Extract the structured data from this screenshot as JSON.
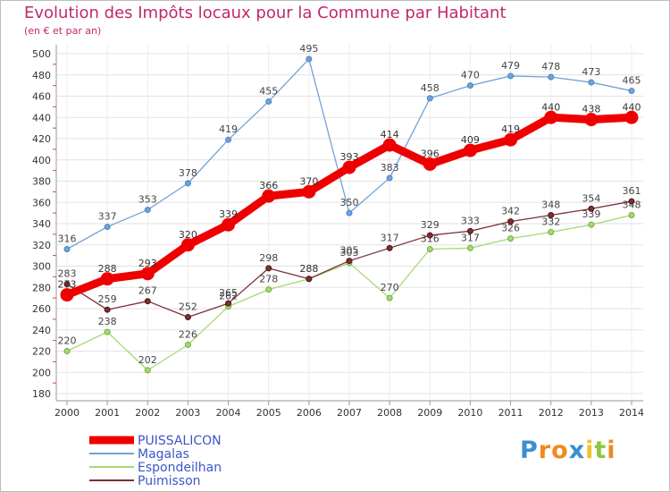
{
  "chart_data": {
    "type": "line",
    "title": "Evolution des Impôts locaux pour la Commune par Habitant",
    "subtitle": "(en € et par an)",
    "xlabel": "",
    "ylabel": "",
    "ylim": [
      180,
      500
    ],
    "ytick_step": 20,
    "categories": [
      "2000",
      "2001",
      "2002",
      "2003",
      "2004",
      "2005",
      "2006",
      "2007",
      "2008",
      "2009",
      "2010",
      "2011",
      "2012",
      "2013",
      "2014"
    ],
    "series": [
      {
        "name": "Magalas",
        "color": "#6fa3d8",
        "label_color": "#444444",
        "values": [
          316,
          337,
          353,
          378,
          419,
          455,
          495,
          350,
          383,
          458,
          470,
          479,
          478,
          473,
          465
        ]
      },
      {
        "name": "Espondeilhan",
        "color": "#a6d877",
        "label_color": "#444444",
        "values": [
          220,
          238,
          202,
          226,
          262,
          278,
          288,
          303,
          270,
          316,
          317,
          326,
          332,
          339,
          348
        ]
      },
      {
        "name": "Puimisson",
        "color": "#7b2f34",
        "label_color": "#444444",
        "values": [
          283,
          259,
          267,
          252,
          265,
          298,
          288,
          305,
          317,
          329,
          333,
          342,
          348,
          354,
          361
        ]
      },
      {
        "name": "PUISSALICON",
        "color": "#ee0000",
        "label_color": "#333333",
        "values": [
          273,
          288,
          293,
          320,
          339,
          366,
          370,
          393,
          414,
          396,
          409,
          419,
          440,
          438,
          440
        ]
      }
    ],
    "legend_order": [
      "PUISSALICON",
      "Magalas",
      "Espondeilhan",
      "Puimisson"
    ],
    "legend_position": "bottom-left"
  },
  "branding": {
    "logo_letters": [
      "P",
      "r",
      "o",
      "x",
      "i",
      "t",
      "i"
    ],
    "logo_colors": [
      "#3a8fd0",
      "#ef8a1e",
      "#ef8a1e",
      "#3a8fd0",
      "#f5c12b",
      "#8cc63f",
      "#ef8a1e"
    ]
  }
}
